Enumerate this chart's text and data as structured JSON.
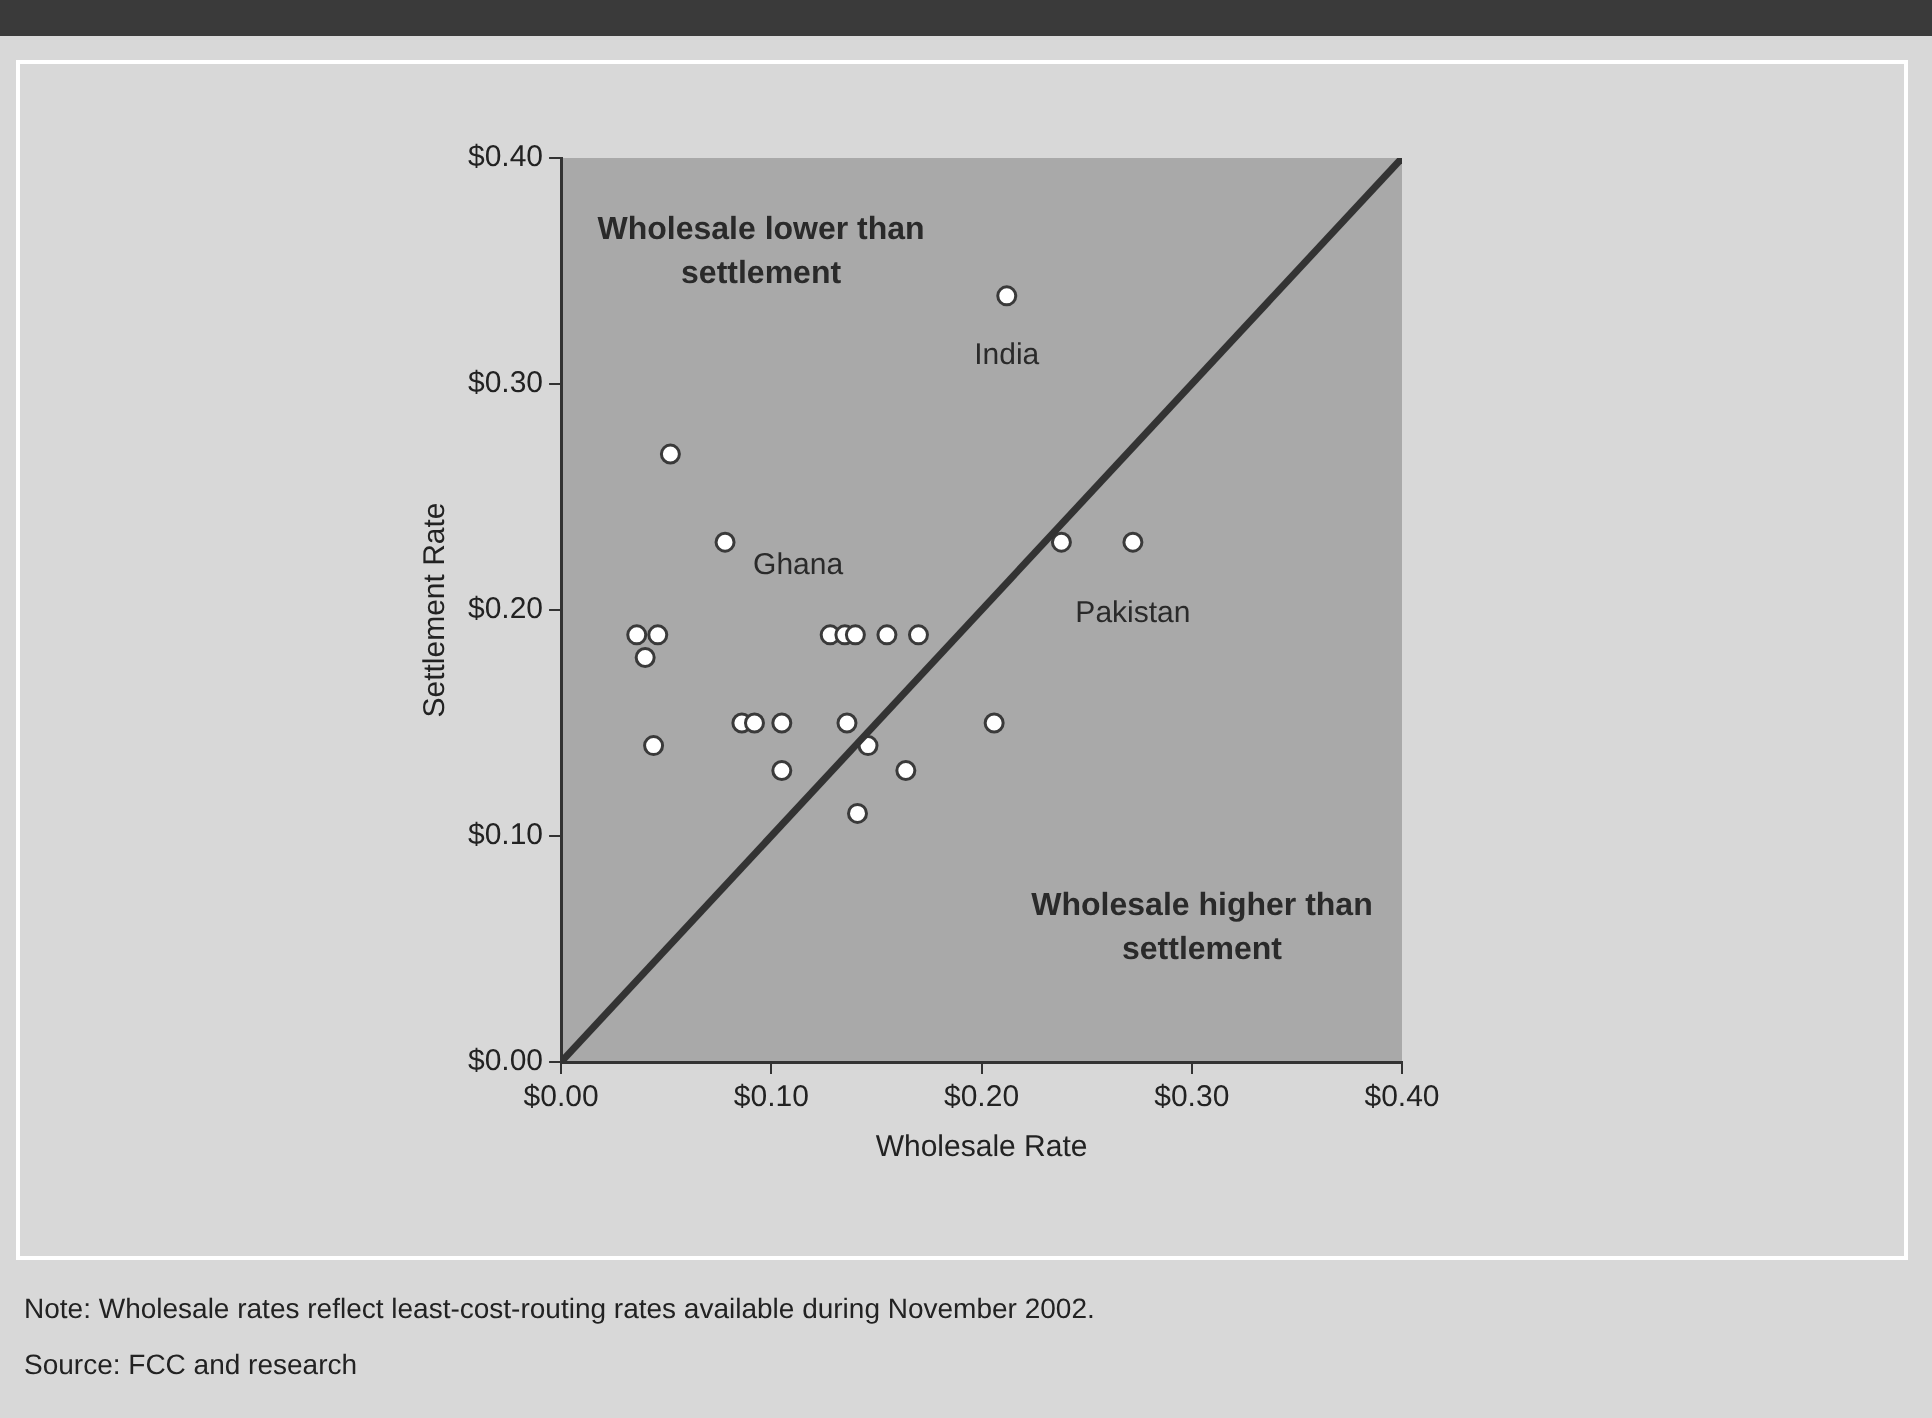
{
  "chart_data": {
    "type": "scatter",
    "xlabel": "Wholesale Rate",
    "ylabel": "Settlement Rate",
    "xlim": [
      0,
      0.4
    ],
    "ylim": [
      0,
      0.4
    ],
    "xticks": [
      {
        "value": 0,
        "label": "$0.00"
      },
      {
        "value": 0.1,
        "label": "$0.10"
      },
      {
        "value": 0.2,
        "label": "$0.20"
      },
      {
        "value": 0.3,
        "label": "$0.30"
      },
      {
        "value": 0.4,
        "label": "$0.40"
      }
    ],
    "yticks": [
      {
        "value": 0,
        "label": "$0.00"
      },
      {
        "value": 0.1,
        "label": "$0.10"
      },
      {
        "value": 0.2,
        "label": "$0.20"
      },
      {
        "value": 0.3,
        "label": "$0.30"
      },
      {
        "value": 0.4,
        "label": "$0.40"
      }
    ],
    "grid": false,
    "legend": false,
    "marker": "circle",
    "series": [
      {
        "type": "line",
        "color": "#333333",
        "x": [
          0,
          0.4
        ],
        "values": [
          0,
          0.4
        ],
        "marker": "none",
        "line_style": "solid"
      },
      {
        "type": "scatter",
        "color": "#ffffff",
        "x": [
          0.212,
          0.052,
          0.078,
          0.238,
          0.272,
          0.036,
          0.046,
          0.04,
          0.128,
          0.135,
          0.14,
          0.155,
          0.17,
          0.086,
          0.092,
          0.105,
          0.136,
          0.206,
          0.044,
          0.146,
          0.105,
          0.164,
          0.141
        ],
        "values": [
          0.339,
          0.269,
          0.23,
          0.23,
          0.23,
          0.189,
          0.189,
          0.179,
          0.189,
          0.189,
          0.189,
          0.189,
          0.189,
          0.15,
          0.15,
          0.15,
          0.15,
          0.15,
          0.14,
          0.14,
          0.129,
          0.129,
          0.11
        ]
      }
    ],
    "annotations": [
      {
        "text": "India",
        "x": 0.212,
        "y": 0.339
      },
      {
        "text": "Ghana",
        "x": 0.078,
        "y": 0.23
      },
      {
        "text": "Pakistan",
        "x": 0.272,
        "y": 0.23
      },
      "Wholesale lower than settlement",
      "Wholesale higher than settlement",
      "Note:  Wholesale rates reflect least-cost-routing rates available during November 2002.",
      "Source:  FCC and research"
    ]
  }
}
